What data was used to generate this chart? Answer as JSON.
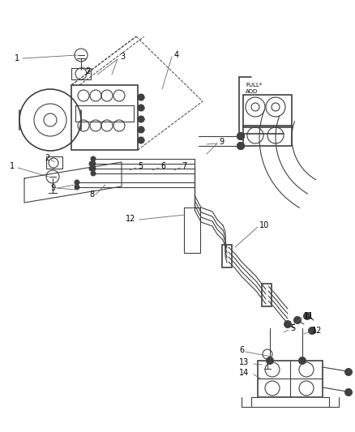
{
  "bg_color": "#ffffff",
  "line_color": "#404040",
  "label_color": "#000000",
  "fig_w": 4.38,
  "fig_h": 5.33,
  "dpi": 100
}
